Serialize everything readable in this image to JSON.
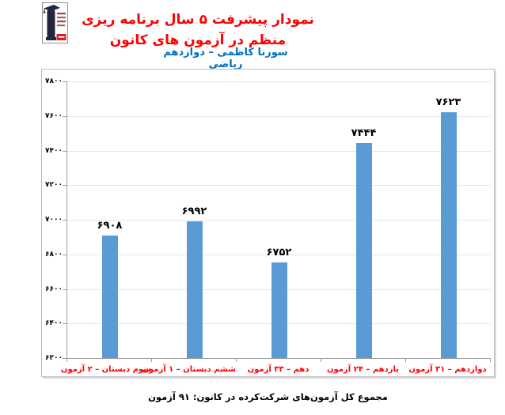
{
  "header": {
    "title": "نمودار پیشرفت ۵ سال برنامه ریزی منظم در آزمون های کانون",
    "subtitle": "سورنا کاظمی – دوازدهم ریاضی",
    "title_color": "#FF0000",
    "subtitle_color": "#0070C0",
    "logo": "kanoon-ghalamchi-logo"
  },
  "chart_data": {
    "type": "bar",
    "title": "نمودار پیشرفت ۵ سال برنامه ریزی منظم در آزمون های کانون",
    "subtitle": "سورنا کاظمی – دوازدهم ریاضی",
    "categories": [
      "سوم دبستان – ۲ آزمون",
      "ششم دبستان – ۱ آزمون",
      "دهم – ۳۳ آزمون",
      "یازدهم – ۲۴ آزمون",
      "دوازدهم – ۳۱ آزمون"
    ],
    "values": [
      6908,
      6992,
      6752,
      7444,
      7623
    ],
    "value_labels": [
      "۶۹۰۸",
      "۶۹۹۲",
      "۶۷۵۲",
      "۷۴۴۴",
      "۷۶۲۳"
    ],
    "ylim": [
      6200,
      7800
    ],
    "ytick_step": 200,
    "ytick_labels": [
      "۶۲۰۰",
      "۶۴۰۰",
      "۶۶۰۰",
      "۶۸۰۰",
      "۷۰۰۰",
      "۷۲۰۰",
      "۷۴۰۰",
      "۷۶۰۰",
      "۷۸۰۰"
    ],
    "grid": true,
    "legend": "none",
    "bar_color": "#5B9BD5",
    "gridline_color": "#DCE9F6",
    "axis_color": "#9E9E9E",
    "category_label_color": "#FF0000",
    "value_label_color": "#000000",
    "xlabel": "",
    "ylabel": ""
  },
  "footnote": {
    "text": "مجموع کل آزمون‌های شرکت‌کرده در کانون:  ۹۱ آزمون"
  }
}
